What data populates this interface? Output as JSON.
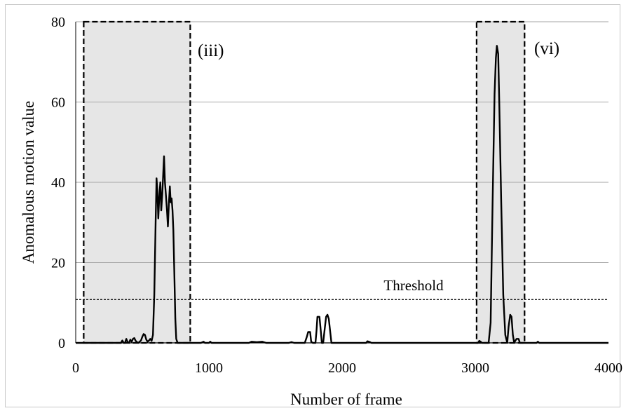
{
  "chart_data": {
    "type": "line",
    "xlabel": "Number of frame",
    "ylabel": "Anomalous motion value",
    "xlim": [
      0,
      4000
    ],
    "ylim": [
      0,
      80
    ],
    "x_ticks": [
      "0",
      "1000",
      "2000",
      "3000",
      "4000"
    ],
    "y_ticks": [
      "0",
      "20",
      "40",
      "60",
      "80"
    ],
    "grid": "horizontal",
    "line_color": "#000000",
    "region_fill": "#e6e6e6",
    "threshold": {
      "label": "Threshold",
      "value": 10.8
    },
    "regions": [
      {
        "label": "(iii)",
        "x_start": 60,
        "x_end": 860
      },
      {
        "label": "(vi)",
        "x_start": 3010,
        "x_end": 3370
      }
    ],
    "series": [
      {
        "points": [
          [
            0,
            0
          ],
          [
            340,
            0
          ],
          [
            350,
            0.6
          ],
          [
            360,
            0
          ],
          [
            370,
            0
          ],
          [
            380,
            1.0
          ],
          [
            390,
            0.2
          ],
          [
            400,
            0
          ],
          [
            410,
            0.8
          ],
          [
            420,
            0.3
          ],
          [
            430,
            1.0
          ],
          [
            440,
            1.2
          ],
          [
            450,
            0.5
          ],
          [
            460,
            0.2
          ],
          [
            470,
            0
          ],
          [
            490,
            0.6
          ],
          [
            500,
            1.5
          ],
          [
            510,
            2.2
          ],
          [
            520,
            2.0
          ],
          [
            530,
            0.8
          ],
          [
            540,
            0.3
          ],
          [
            550,
            0.6
          ],
          [
            560,
            1.0
          ],
          [
            570,
            0.5
          ],
          [
            580,
            2.0
          ],
          [
            590,
            12
          ],
          [
            600,
            30
          ],
          [
            607,
            41
          ],
          [
            613,
            38
          ],
          [
            620,
            31
          ],
          [
            627,
            36
          ],
          [
            635,
            40
          ],
          [
            642,
            33
          ],
          [
            650,
            37
          ],
          [
            657,
            42
          ],
          [
            663,
            46.5
          ],
          [
            670,
            40
          ],
          [
            677,
            37
          ],
          [
            685,
            33
          ],
          [
            692,
            29
          ],
          [
            700,
            35
          ],
          [
            707,
            39
          ],
          [
            713,
            35
          ],
          [
            720,
            36
          ],
          [
            727,
            33
          ],
          [
            733,
            28
          ],
          [
            740,
            18
          ],
          [
            748,
            6
          ],
          [
            755,
            1
          ],
          [
            765,
            0
          ],
          [
            900,
            0
          ],
          [
            940,
            0
          ],
          [
            960,
            0.3
          ],
          [
            970,
            0
          ],
          [
            1000,
            0
          ],
          [
            1010,
            0.3
          ],
          [
            1020,
            0
          ],
          [
            1300,
            0
          ],
          [
            1320,
            0.3
          ],
          [
            1360,
            0.2
          ],
          [
            1400,
            0.3
          ],
          [
            1430,
            0
          ],
          [
            1600,
            0
          ],
          [
            1620,
            0.2
          ],
          [
            1640,
            0
          ],
          [
            1720,
            0
          ],
          [
            1735,
            1.5
          ],
          [
            1745,
            2.7
          ],
          [
            1760,
            2.7
          ],
          [
            1768,
            0.3
          ],
          [
            1780,
            0
          ],
          [
            1800,
            0
          ],
          [
            1808,
            3
          ],
          [
            1815,
            6.5
          ],
          [
            1830,
            6.5
          ],
          [
            1840,
            3
          ],
          [
            1848,
            0
          ],
          [
            1858,
            0
          ],
          [
            1868,
            3
          ],
          [
            1880,
            6.5
          ],
          [
            1890,
            7
          ],
          [
            1900,
            6
          ],
          [
            1910,
            3
          ],
          [
            1920,
            0
          ],
          [
            2180,
            0
          ],
          [
            2190,
            0.4
          ],
          [
            2210,
            0.2
          ],
          [
            2220,
            0
          ],
          [
            3020,
            0
          ],
          [
            3030,
            0.5
          ],
          [
            3040,
            0.3
          ],
          [
            3050,
            0
          ],
          [
            3100,
            0
          ],
          [
            3115,
            5
          ],
          [
            3130,
            35
          ],
          [
            3145,
            62
          ],
          [
            3155,
            71
          ],
          [
            3162,
            74
          ],
          [
            3172,
            72
          ],
          [
            3180,
            60
          ],
          [
            3195,
            35
          ],
          [
            3210,
            12
          ],
          [
            3225,
            2
          ],
          [
            3240,
            0
          ],
          [
            3250,
            4
          ],
          [
            3262,
            7
          ],
          [
            3272,
            6.5
          ],
          [
            3282,
            2
          ],
          [
            3292,
            0
          ],
          [
            3300,
            0.5
          ],
          [
            3310,
            1.0
          ],
          [
            3325,
            1.0
          ],
          [
            3335,
            0
          ],
          [
            3460,
            0
          ],
          [
            3470,
            0.3
          ],
          [
            3480,
            0
          ],
          [
            4000,
            0
          ]
        ]
      }
    ]
  }
}
